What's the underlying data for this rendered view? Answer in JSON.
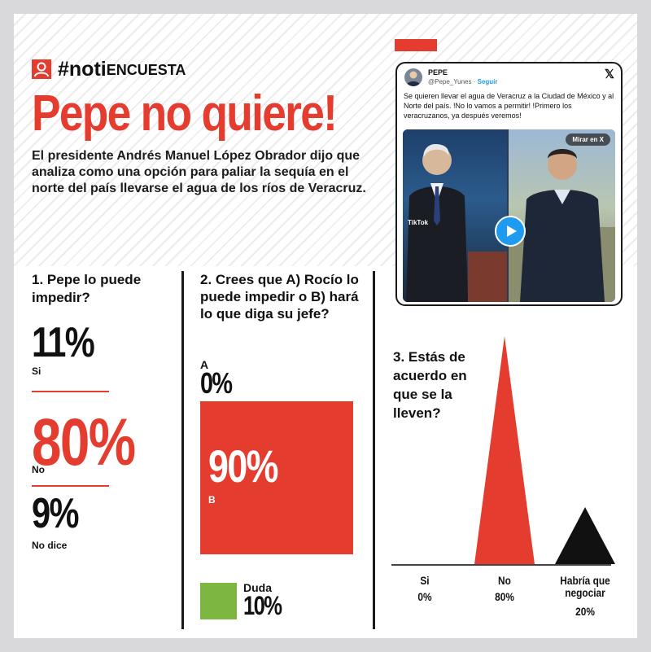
{
  "header": {
    "brand_hash": "#noti",
    "brand_rest": "ENCUESTA",
    "title": "Pepe no quiere!",
    "lead": "El presidente Andrés Manuel López Obrador dijo que analiza como una opción para paliar la sequía en el norte del país llevarse el agua de los ríos de Veracruz."
  },
  "tweet": {
    "name": "PEPE",
    "handle": "@Pepe_Yunes · ",
    "follow": "Seguir",
    "text": "Se quieren llevar el agua de Veracruz a la Ciudad de México y al Norte del país. !No lo vamos a permitir! !Primero los veracruzanos, ya después veremos!",
    "mirar": "Mirar en X",
    "tiktok": "TikTok",
    "x_icon": "x-logo-icon"
  },
  "chart_data": [
    {
      "type": "table",
      "question": "1. Pepe lo puede impedir?",
      "categories": [
        "Si",
        "No",
        "No dice"
      ],
      "values": [
        11,
        80,
        9
      ],
      "value_labels": [
        "11%",
        "80%",
        "9%"
      ]
    },
    {
      "type": "bar",
      "question": "2. Crees que A) Rocío lo puede impedir o B) hará lo que diga su jefe?",
      "categories": [
        "A",
        "B",
        "Duda"
      ],
      "values": [
        0,
        90,
        10
      ],
      "value_labels": [
        "0%",
        "90%",
        "10%"
      ],
      "colors": [
        "#e43d30",
        "#e43d30",
        "#7db641"
      ]
    },
    {
      "type": "bar",
      "question": "3. Estás de acuerdo en que se la lleven?",
      "categories": [
        "Si",
        "No",
        "Habría que negociar"
      ],
      "values": [
        0,
        80,
        20
      ],
      "value_labels": [
        "0%",
        "80%",
        "20%"
      ],
      "colors": [
        "#e43d30",
        "#e43d30",
        "#111111"
      ]
    }
  ]
}
